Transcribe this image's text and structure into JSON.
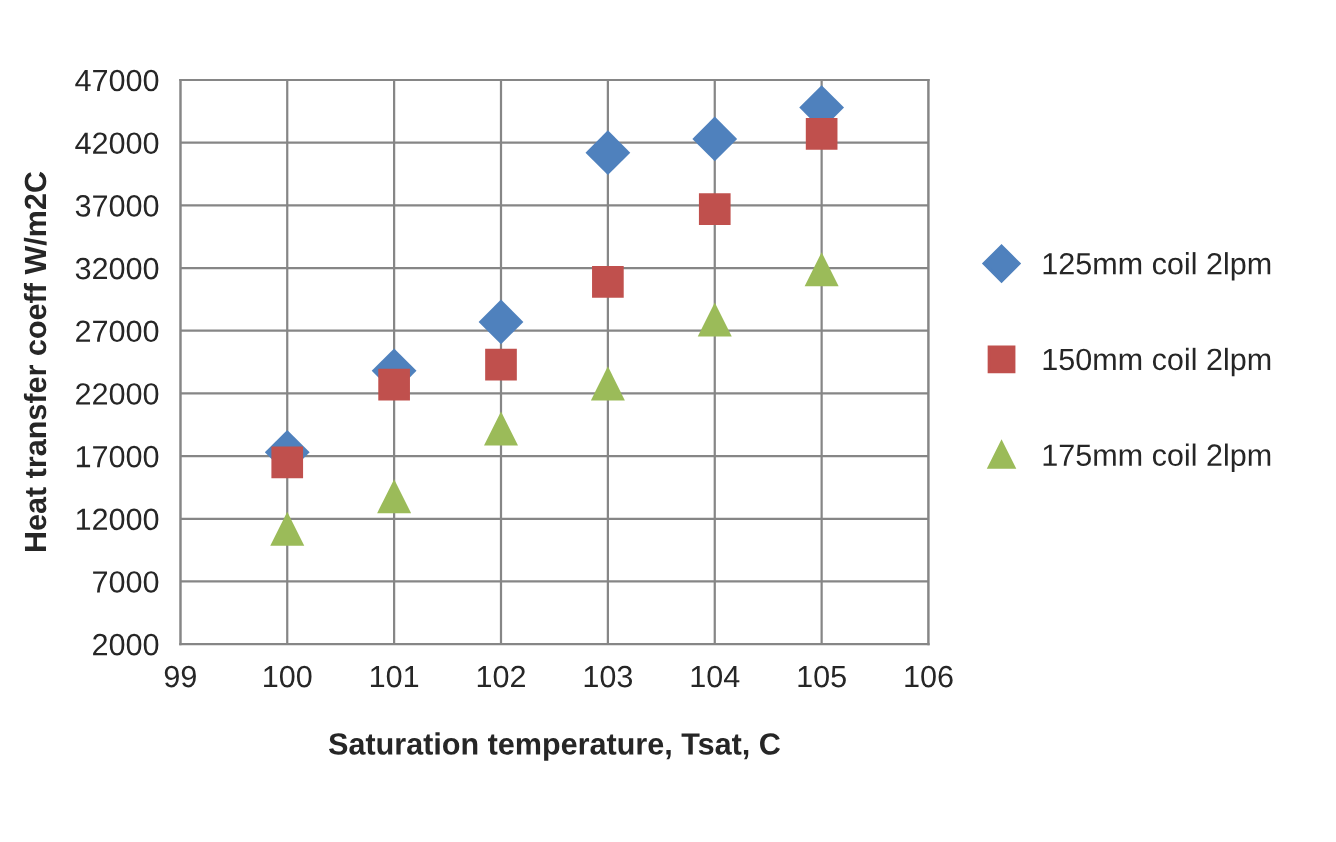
{
  "chart_data": {
    "type": "scatter",
    "xlabel": "Saturation temperature, Tsat, C",
    "ylabel": "Heat transfer coeff W/m2C",
    "x": [
      100,
      101,
      102,
      103,
      104,
      105
    ],
    "series": [
      {
        "name": "125mm coil 2lpm",
        "color": "#4f81bd",
        "marker": "diamond",
        "values": [
          17300,
          23800,
          27700,
          41200,
          42300,
          44800
        ]
      },
      {
        "name": "150mm coil 2lpm",
        "color": "#c0504d",
        "marker": "square",
        "values": [
          16500,
          22700,
          24300,
          30900,
          36700,
          42700
        ]
      },
      {
        "name": "175mm coil 2lpm",
        "color": "#9bbb59",
        "marker": "triangle",
        "values": [
          11200,
          13800,
          19200,
          22800,
          27900,
          31900
        ]
      }
    ],
    "xlim": [
      99,
      106
    ],
    "xticks": [
      99,
      100,
      101,
      102,
      103,
      104,
      105,
      106
    ],
    "ylim": [
      2000,
      47000
    ],
    "yticks": [
      2000,
      7000,
      12000,
      17000,
      22000,
      27000,
      32000,
      37000,
      42000,
      47000
    ],
    "grid": true,
    "legend": "right"
  }
}
